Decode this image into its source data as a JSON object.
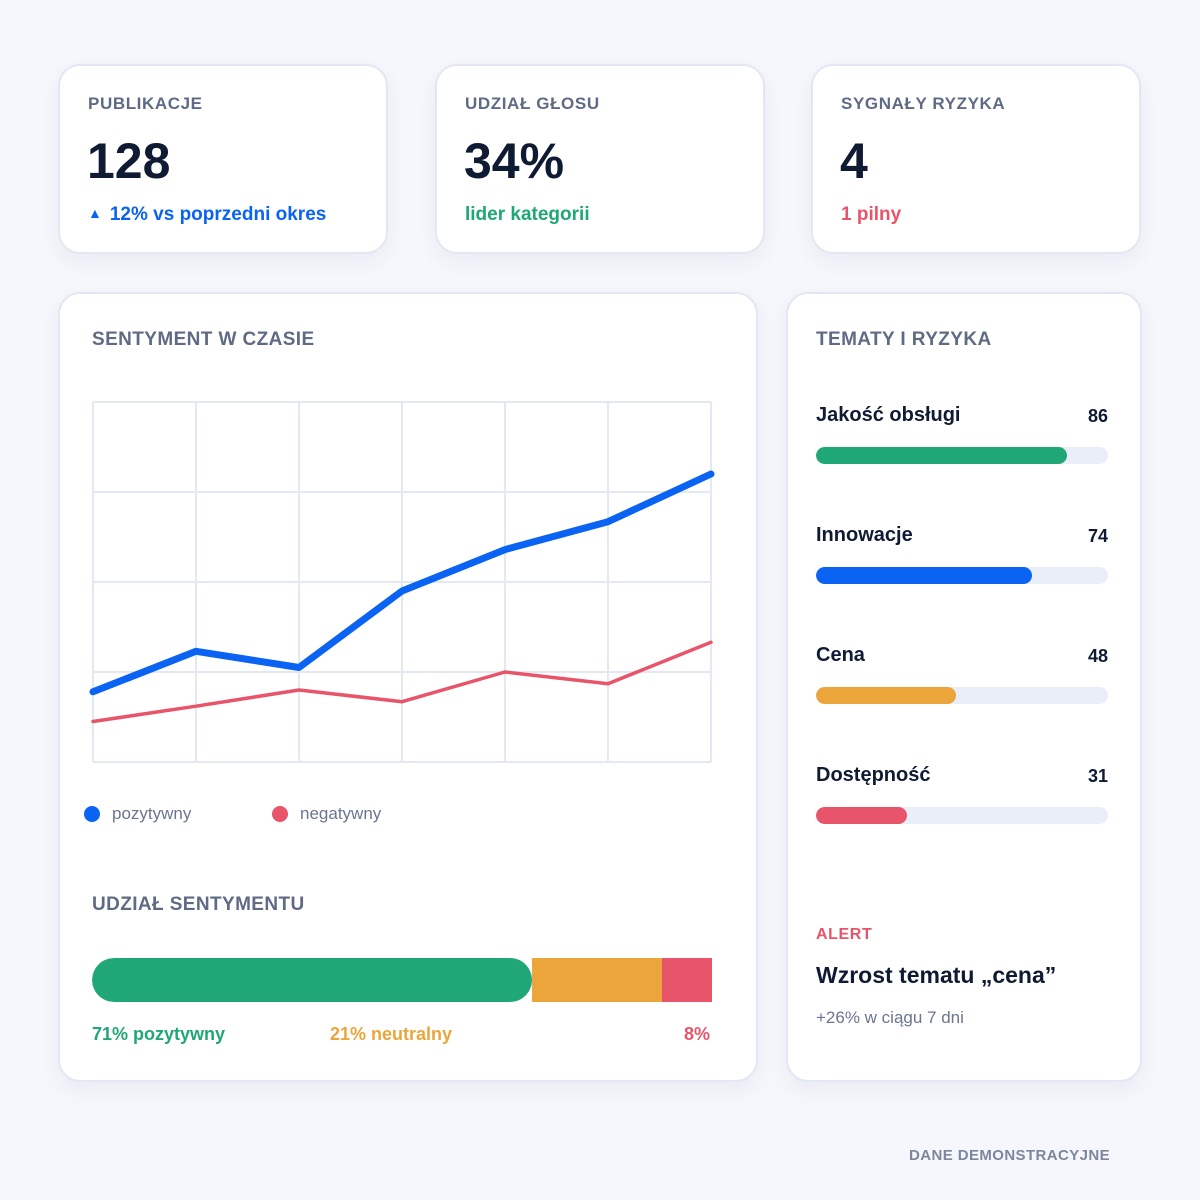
{
  "kpis": [
    {
      "label": "PUBLIKACJE",
      "value": "128",
      "sub": "12% vs poprzedni okres",
      "sub_icon": "triangle-up-icon"
    },
    {
      "label": "UDZIAŁ GŁOSU",
      "value": "34%",
      "sub": "lider kategorii"
    },
    {
      "label": "SYGNAŁY RYZYKA",
      "value": "4",
      "sub": "1 pilny"
    }
  ],
  "sentiment": {
    "title": "SENTYMENT W CZASIE",
    "legend": {
      "positive": "pozytywny",
      "negative": "negatywny"
    }
  },
  "chart_data": {
    "type": "line",
    "x": [
      1,
      2,
      3,
      4,
      5,
      6,
      7
    ],
    "xlim": [
      1,
      7
    ],
    "ylim": [
      0,
      4
    ],
    "grid": true,
    "series": [
      {
        "name": "pozytywny",
        "values": [
          0.78,
          1.23,
          1.05,
          1.9,
          2.36,
          2.67,
          3.2
        ],
        "color": "#0a63f2"
      },
      {
        "name": "negatywny",
        "values": [
          0.45,
          0.62,
          0.8,
          0.67,
          1.0,
          0.87,
          1.33
        ],
        "color": "#e8546a"
      }
    ],
    "legend_position": "bottom-left"
  },
  "share": {
    "title": "UDZIAŁ SENTYMENTU",
    "segments": [
      {
        "key": "pos",
        "percent": 71,
        "label": "71% pozytywny",
        "color": "#1fa776"
      },
      {
        "key": "neu",
        "percent": 21,
        "label": "21% neutralny",
        "color": "#eca53a"
      },
      {
        "key": "neg",
        "percent": 8,
        "label": "8%",
        "color": "#e8546a"
      }
    ]
  },
  "topics": {
    "title": "TEMATY I RYZYKA",
    "items": [
      {
        "name": "Jakość obsługi",
        "value": 86,
        "color": "#1fa776"
      },
      {
        "name": "Innowacje",
        "value": 74,
        "color": "#0a63f2"
      },
      {
        "name": "Cena",
        "value": 48,
        "color": "#eca53a"
      },
      {
        "name": "Dostępność",
        "value": 31,
        "color": "#e8546a"
      }
    ],
    "alert": {
      "label": "ALERT",
      "title": "Wzrost tematu „cena”",
      "sub": "+26% w ciągu 7 dni"
    }
  },
  "footer": "DANE DEMONSTRACYJNE"
}
